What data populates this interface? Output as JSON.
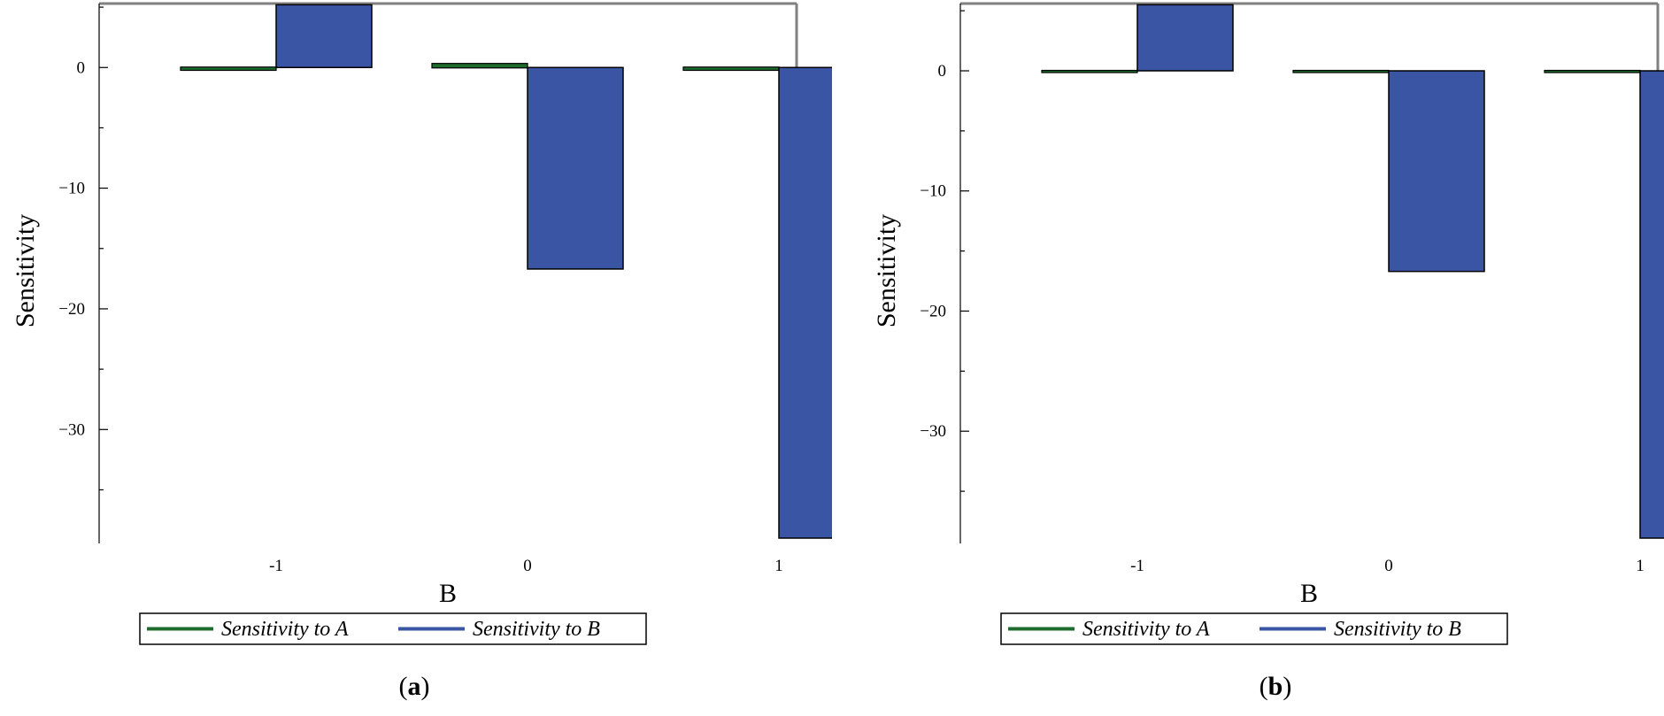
{
  "colors": {
    "series_a": "#1e6b2e",
    "series_b": "#3a55a4",
    "frame": "#808080",
    "axis": "#000000"
  },
  "chart_data": [
    {
      "type": "bar",
      "panel": "a",
      "categories": [
        "-1",
        "0",
        "1"
      ],
      "xlabel": "B",
      "ylabel": "Sensitivity",
      "ylim": [
        -39,
        5.3
      ],
      "yticks": [
        0,
        -10,
        -20,
        -30
      ],
      "ytick_labels": [
        "0",
        "−10",
        "−20",
        "−30"
      ],
      "grid": false,
      "legend_position": "bottom",
      "series": [
        {
          "name": "Sensitivity to A",
          "color": "#1e6b2e",
          "values": [
            -0.2,
            0.3,
            -0.2
          ]
        },
        {
          "name": "Sensitivity to B",
          "color": "#3a55a4",
          "values": [
            5.2,
            -16.7,
            -39
          ]
        }
      ],
      "caption_open": "(",
      "caption_letter": "a",
      "caption_close": ")"
    },
    {
      "type": "bar",
      "panel": "b",
      "categories": [
        "-1",
        "0",
        "1"
      ],
      "xlabel": "B",
      "ylabel": "Sensitivity",
      "ylim": [
        -38.9,
        5.6
      ],
      "yticks": [
        0,
        -10,
        -20,
        -30
      ],
      "ytick_labels": [
        "0",
        "−10",
        "−20",
        "−30"
      ],
      "grid": false,
      "legend_position": "bottom",
      "series": [
        {
          "name": "Sensitivity to A",
          "color": "#1e6b2e",
          "values": [
            0,
            0,
            0
          ]
        },
        {
          "name": "Sensitivity to B",
          "color": "#3a55a4",
          "values": [
            5.5,
            -16.7,
            -38.9
          ]
        }
      ],
      "caption_open": "(",
      "caption_letter": "b",
      "caption_close": ")"
    }
  ]
}
